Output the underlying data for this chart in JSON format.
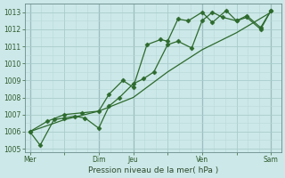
{
  "bg_color": "#cce8e8",
  "grid_major_color": "#aacccc",
  "grid_minor_color": "#bbd8d8",
  "line_color": "#2d6a2d",
  "marker_color": "#2d6a2d",
  "ylim": [
    1004.8,
    1013.5
  ],
  "yticks": [
    1005,
    1006,
    1007,
    1008,
    1009,
    1010,
    1011,
    1012,
    1013
  ],
  "day_labels": [
    "Mer",
    "",
    "Dim",
    "Jeu",
    "",
    "Ven",
    "",
    "Sam"
  ],
  "day_positions": [
    0,
    1,
    2,
    3,
    4,
    5,
    6,
    7
  ],
  "vline_positions": [
    0,
    2,
    3,
    5,
    7
  ],
  "vline_color": "#557777",
  "xlabel": "Pression niveau de la mer( hPa )",
  "series1_x": [
    0,
    0.3,
    0.7,
    1.0,
    1.3,
    1.6,
    2.0,
    2.3,
    2.6,
    3.0,
    3.3,
    3.6,
    4.0,
    4.3,
    4.7,
    5.0,
    5.3,
    5.6,
    6.0,
    6.3,
    6.7,
    7.0
  ],
  "series1_y": [
    1006.0,
    1005.2,
    1006.7,
    1006.8,
    1006.9,
    1006.8,
    1006.2,
    1007.5,
    1008.0,
    1008.8,
    1009.1,
    1009.5,
    1011.1,
    1011.3,
    1010.9,
    1012.5,
    1013.0,
    1012.7,
    1012.5,
    1012.8,
    1012.1,
    1013.1
  ],
  "series2_x": [
    0,
    0.5,
    1.0,
    1.5,
    2.0,
    2.3,
    2.7,
    3.0,
    3.4,
    3.8,
    4.0,
    4.3,
    4.6,
    5.0,
    5.3,
    5.7,
    6.0,
    6.3,
    6.7,
    7.0
  ],
  "series2_y": [
    1006.0,
    1006.6,
    1007.0,
    1007.1,
    1007.2,
    1008.2,
    1009.0,
    1008.6,
    1011.1,
    1011.4,
    1011.3,
    1012.6,
    1012.5,
    1013.0,
    1012.4,
    1013.1,
    1012.5,
    1012.7,
    1012.0,
    1013.1
  ],
  "series3_x": [
    0,
    1.0,
    2.0,
    3.0,
    4.0,
    5.0,
    6.0,
    7.0
  ],
  "series3_y": [
    1006.0,
    1006.7,
    1007.2,
    1008.0,
    1009.5,
    1010.8,
    1011.8,
    1013.0
  ]
}
